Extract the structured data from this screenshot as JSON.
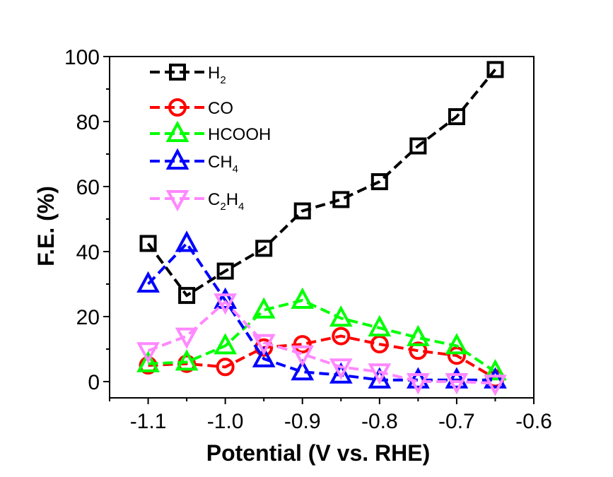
{
  "chart_data": {
    "type": "line",
    "title": "",
    "xlabel": "Potential (V vs. RHE)",
    "ylabel": "F.E. (%)",
    "xlim": [
      -1.15,
      -0.6
    ],
    "ylim": [
      -5,
      100
    ],
    "xticks": [
      -1.1,
      -1.0,
      -0.9,
      -0.8,
      -0.7,
      -0.6
    ],
    "xtick_labels": [
      "-1.1",
      "-1.0",
      "-0.9",
      "-0.8",
      "-0.7",
      "-0.6"
    ],
    "yticks": [
      0,
      20,
      40,
      60,
      80,
      100
    ],
    "ytick_labels": [
      "0",
      "20",
      "40",
      "60",
      "80",
      "100"
    ],
    "grid": false,
    "legend_position": "top-left",
    "x": [
      -1.1,
      -1.05,
      -1.0,
      -0.95,
      -0.9,
      -0.85,
      -0.8,
      -0.75,
      -0.7,
      -0.65
    ],
    "series": [
      {
        "name": "H2",
        "label_main": "H",
        "label_sub": "2",
        "label_post": "",
        "label_sub2": "",
        "marker": "square",
        "color": "#000000",
        "values": [
          42.5,
          26.5,
          34,
          41,
          52.5,
          56,
          61.5,
          72.5,
          81.5,
          96
        ]
      },
      {
        "name": "CO",
        "label_main": "CO",
        "label_sub": "",
        "label_post": "",
        "label_sub2": "",
        "marker": "circle",
        "color": "#ff0000",
        "values": [
          5,
          5.5,
          4.5,
          10.5,
          11.5,
          14,
          11.5,
          9.5,
          8,
          1
        ]
      },
      {
        "name": "HCOOH",
        "label_main": "HCOOH",
        "label_sub": "",
        "label_post": "",
        "label_sub2": "",
        "marker": "triangle-up",
        "color": "#00ff00",
        "values": [
          5.5,
          6,
          11,
          22,
          25,
          19.5,
          16.5,
          13.5,
          11,
          3
        ]
      },
      {
        "name": "CH4",
        "label_main": "CH",
        "label_sub": "4",
        "label_post": "",
        "label_sub2": "",
        "marker": "triangle-up",
        "color": "#0000ff",
        "values": [
          30,
          42.5,
          25,
          7,
          3,
          2,
          0.5,
          0.5,
          0.5,
          0.5
        ]
      },
      {
        "name": "C2H4",
        "label_main": "C",
        "label_sub": "2",
        "label_post": "H",
        "label_sub2": "4",
        "marker": "triangle-down",
        "color": "#ff88ff",
        "values": [
          9.5,
          14,
          24.5,
          12,
          8.5,
          4.5,
          3,
          0,
          0,
          -0.5
        ]
      }
    ]
  }
}
